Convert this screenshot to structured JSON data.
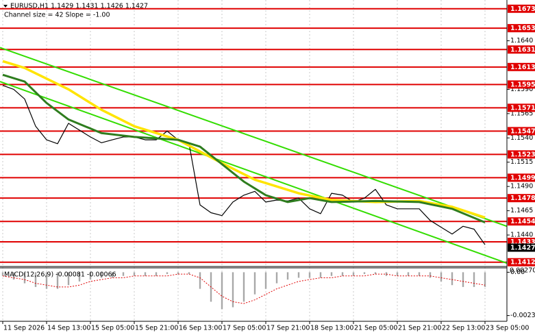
{
  "chart_data": [
    {
      "type": "line",
      "title": "EURUSD,H1  1.1429 1.1431 1.1426 1.1427",
      "subtitle": "Channel size = 42 Slope = -1.00",
      "xlim": [
        -1,
        184
      ],
      "xticks": [
        {
          "value": 0,
          "label": "11 Sep 2026"
        },
        {
          "value": 16,
          "label": "14 Sep 13:00"
        },
        {
          "value": 32,
          "label": "15 Sep 05:00"
        },
        {
          "value": 48,
          "label": "15 Sep 21:00"
        },
        {
          "value": 64,
          "label": "16 Sep 13:00"
        },
        {
          "value": 80,
          "label": "17 Sep 05:00"
        },
        {
          "value": 96,
          "label": "17 Sep 21:00"
        },
        {
          "value": 112,
          "label": "18 Sep 13:00"
        },
        {
          "value": 128,
          "label": "21 Sep 05:00"
        },
        {
          "value": 144,
          "label": "21 Sep 21:00"
        },
        {
          "value": 160,
          "label": "22 Sep 13:00"
        },
        {
          "value": 176,
          "label": "23 Sep 05:00"
        }
      ],
      "ylim": [
        1.1409,
        1.1682
      ],
      "yticks": [
        {
          "value": 1.164,
          "label": "1.1640"
        },
        {
          "value": 1.159,
          "label": "1.1590"
        },
        1.1565,
        {
          "value": 1.154,
          "label": "1.1540"
        },
        1.1515,
        {
          "value": 1.149,
          "label": "1.1490"
        },
        1.1465,
        {
          "value": 1.144,
          "label": "1.1440"
        }
      ],
      "grid": "x",
      "levels": {
        "color": "#e00000",
        "values": [
          1.1673,
          1.1653,
          1.1631,
          1.1613,
          1.1595,
          1.1571,
          1.1547,
          1.1523,
          1.1499,
          1.1478,
          1.1454,
          1.1433,
          1.1412
        ]
      },
      "current_price": {
        "value": 1.1427,
        "color": "#000000"
      },
      "series": [
        {
          "color": "#33dd00",
          "width": 2,
          "x": [
            -1,
            184
          ],
          "values": [
            1.1633,
            1.1449
          ]
        },
        {
          "color": "#33dd00",
          "width": 2,
          "x": [
            -1,
            184
          ],
          "values": [
            1.1598,
            1.1411
          ]
        },
        {
          "color": "#000000",
          "width": 1.2,
          "x": [
            0,
            4,
            8,
            12,
            16,
            20,
            24,
            28,
            32,
            36,
            40,
            44,
            48,
            52,
            56,
            60,
            64,
            68,
            72,
            76,
            80,
            84,
            88,
            92,
            96,
            100,
            104,
            108,
            112,
            116,
            120,
            124,
            128,
            132,
            136,
            140,
            144,
            148,
            152,
            156,
            160,
            164,
            168,
            172,
            176
          ],
          "values": [
            1.1594,
            1.159,
            1.158,
            1.1552,
            1.1538,
            1.1534,
            1.1555,
            1.1548,
            1.1541,
            1.1535,
            1.1538,
            1.1541,
            1.1541,
            1.1538,
            1.1538,
            1.1547,
            1.1538,
            1.1534,
            1.1471,
            1.1463,
            1.146,
            1.1474,
            1.1481,
            1.1485,
            1.1474,
            1.1476,
            1.1475,
            1.1478,
            1.1467,
            1.1462,
            1.1483,
            1.1481,
            1.1474,
            1.1478,
            1.1487,
            1.1471,
            1.1467,
            1.1467,
            1.1467,
            1.1455,
            1.1448,
            1.1441,
            1.1449,
            1.1446,
            1.143
          ]
        },
        {
          "color": "#ffe400",
          "width": 3.5,
          "x": [
            0,
            8,
            24,
            36,
            48,
            64,
            80,
            92,
            108,
            120,
            136,
            152,
            164,
            176
          ],
          "values": [
            1.1619,
            1.1612,
            1.159,
            1.1569,
            1.1552,
            1.1538,
            1.1514,
            1.1497,
            1.1483,
            1.1476,
            1.1474,
            1.1475,
            1.1469,
            1.1458
          ]
        },
        {
          "color": "#2e7d1e",
          "width": 3,
          "x": [
            0,
            8,
            16,
            24,
            36,
            48,
            64,
            72,
            80,
            88,
            96,
            104,
            112,
            120,
            136,
            152,
            164,
            176
          ],
          "values": [
            1.1605,
            1.1598,
            1.1576,
            1.1559,
            1.1545,
            1.1541,
            1.1538,
            1.1531,
            1.1513,
            1.1495,
            1.1481,
            1.1474,
            1.1478,
            1.1474,
            1.1475,
            1.1474,
            1.1467,
            1.1453
          ]
        }
      ]
    },
    {
      "type": "bar",
      "title": "MACD(12,26,9) -0.00081 -0.00066",
      "scale_max_label": "0.00270",
      "xlim": [
        -1,
        184
      ],
      "ylim": [
        -0.00255,
        0.0002
      ],
      "yticks": [
        {
          "value": 0,
          "label": "0.00"
        },
        -0.00235
      ],
      "color": "#a8a8a8",
      "x": [
        0,
        4,
        8,
        12,
        16,
        20,
        24,
        28,
        32,
        36,
        40,
        44,
        48,
        52,
        56,
        60,
        64,
        68,
        72,
        76,
        80,
        84,
        88,
        92,
        96,
        100,
        104,
        108,
        112,
        116,
        120,
        124,
        128,
        132,
        136,
        140,
        144,
        148,
        152,
        156,
        160,
        164,
        168,
        172,
        176
      ],
      "values": [
        -0.0002,
        -0.0004,
        -0.0006,
        -0.0008,
        -0.0009,
        -0.0009,
        -0.0007,
        -0.0005,
        -0.0004,
        -0.0003,
        -0.0003,
        -0.0002,
        -0.0002,
        -0.0002,
        -0.0002,
        -0.0001,
        -0.0001,
        -0.0001,
        -0.0009,
        -0.0016,
        -0.002,
        -0.0019,
        -0.0016,
        -0.0012,
        -0.0009,
        -0.0006,
        -0.0004,
        -0.0003,
        -0.0003,
        -0.0003,
        -0.0002,
        -0.0002,
        -0.0002,
        -0.0001,
        -0.0001,
        -0.0002,
        -0.0002,
        -0.0002,
        -0.0002,
        -0.0003,
        -0.0005,
        -0.0007,
        -0.0008,
        -0.0008,
        -0.0008
      ],
      "signal": {
        "color": "#e00000",
        "values": [
          -0.0002,
          -0.0003,
          -0.0004,
          -0.0006,
          -0.0007,
          -0.0008,
          -0.0008,
          -0.0007,
          -0.0005,
          -0.0004,
          -0.0003,
          -0.0003,
          -0.0002,
          -0.0002,
          -0.0002,
          -0.0002,
          -0.0001,
          -0.0001,
          -0.0003,
          -0.0008,
          -0.0013,
          -0.0016,
          -0.0017,
          -0.0015,
          -0.0012,
          -0.0009,
          -0.0007,
          -0.0005,
          -0.0004,
          -0.0003,
          -0.0003,
          -0.0002,
          -0.0002,
          -0.0002,
          -0.0001,
          -0.0001,
          -0.0002,
          -0.0002,
          -0.0002,
          -0.0002,
          -0.0003,
          -0.0004,
          -0.0005,
          -0.0006,
          -0.0007
        ]
      }
    }
  ]
}
